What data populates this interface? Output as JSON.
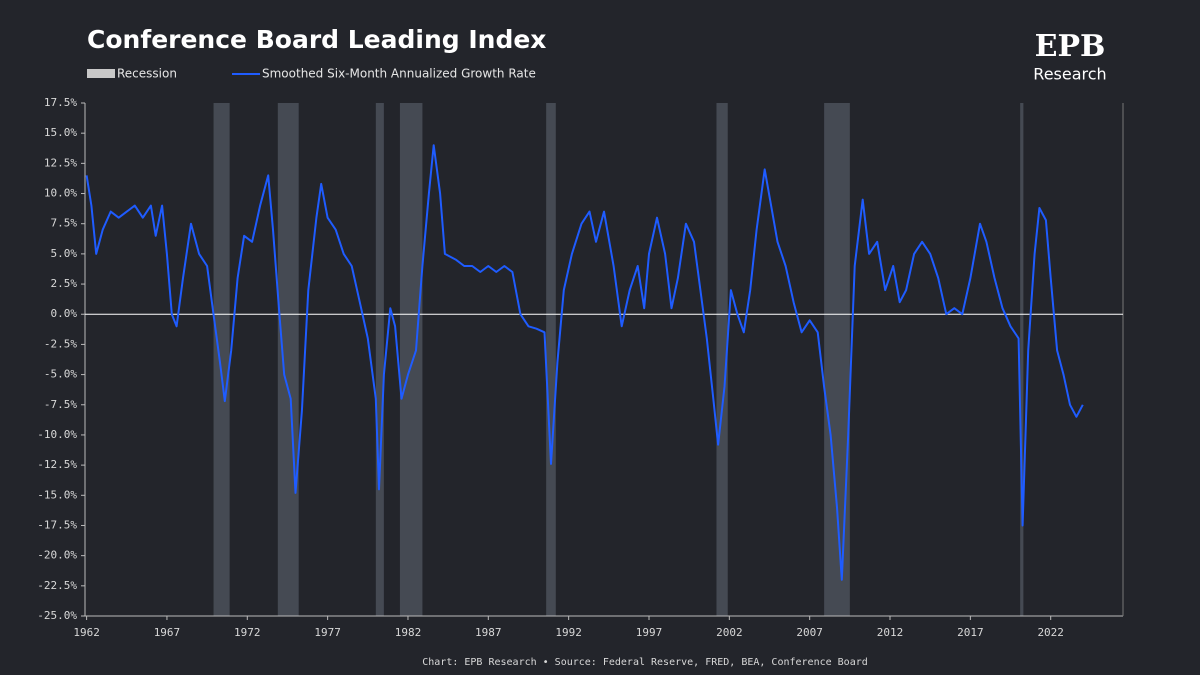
{
  "chart_data": {
    "type": "line",
    "title": "Conference Board Leading Index",
    "logo": {
      "mark": "EPB",
      "text": "Research"
    },
    "source": "Chart: EPB Research  •  Source: Federal Reserve, FRED, BEA, Conference Board",
    "recessions": {
      "name": "Recession",
      "color": "#454a53",
      "periods": [
        [
          1969.9,
          1970.9
        ],
        [
          1973.9,
          1975.2
        ],
        [
          1980.0,
          1980.5
        ],
        [
          1981.5,
          1982.9
        ],
        [
          1990.6,
          1991.2
        ],
        [
          2001.2,
          2001.9
        ],
        [
          2007.9,
          2009.5
        ],
        [
          2020.1,
          2020.3
        ]
      ]
    },
    "x": [
      1962,
      1962.3,
      1962.6,
      1963,
      1963.5,
      1964,
      1964.5,
      1965,
      1965.5,
      1966,
      1966.3,
      1966.7,
      1967,
      1967.3,
      1967.6,
      1968,
      1968.5,
      1969,
      1969.5,
      1969.9,
      1970.3,
      1970.6,
      1971,
      1971.4,
      1971.8,
      1972.3,
      1972.8,
      1973.3,
      1973.6,
      1974,
      1974.3,
      1974.7,
      1975,
      1975.4,
      1975.8,
      1976.3,
      1976.6,
      1977,
      1977.5,
      1978,
      1978.5,
      1979,
      1979.5,
      1980,
      1980.2,
      1980.5,
      1980.9,
      1981.2,
      1981.6,
      1982,
      1982.5,
      1982.9,
      1983.3,
      1983.6,
      1984,
      1984.3,
      1985,
      1985.5,
      1986,
      1986.5,
      1987,
      1987.5,
      1988,
      1988.5,
      1989,
      1989.5,
      1990,
      1990.5,
      1990.9,
      1991.3,
      1991.7,
      1992.2,
      1992.8,
      1993.3,
      1993.7,
      1994.2,
      1994.8,
      1995.3,
      1995.8,
      1996.3,
      1996.7,
      1997,
      1997.5,
      1998,
      1998.4,
      1998.8,
      1999.3,
      1999.8,
      2000.2,
      2000.6,
      2001,
      2001.3,
      2001.7,
      2002.1,
      2002.5,
      2002.9,
      2003.3,
      2003.7,
      2004.2,
      2004.6,
      2005,
      2005.5,
      2006,
      2006.5,
      2007,
      2007.5,
      2007.9,
      2008.3,
      2008.7,
      2009,
      2009.4,
      2009.8,
      2010.3,
      2010.7,
      2011.2,
      2011.7,
      2012.2,
      2012.6,
      2013,
      2013.5,
      2014,
      2014.5,
      2015,
      2015.5,
      2016,
      2016.5,
      2017,
      2017.6,
      2018,
      2018.5,
      2019,
      2019.5,
      2020,
      2020.25,
      2020.6,
      2021,
      2021.3,
      2021.7,
      2022,
      2022.4,
      2022.8,
      2023.2,
      2023.6,
      2024
    ],
    "series": [
      {
        "name": "Smoothed Six-Month Annualized Growth Rate",
        "color": "#1f5cff",
        "values": [
          11.5,
          9,
          5,
          7,
          8.5,
          8,
          8.5,
          9,
          8,
          9,
          6.5,
          9,
          5,
          0,
          -1,
          3,
          7.5,
          5,
          4,
          0,
          -4,
          -7.2,
          -3,
          3,
          6.5,
          6,
          9,
          11.5,
          7,
          0,
          -5,
          -7,
          -14.8,
          -8,
          2,
          8,
          10.8,
          8,
          7,
          5,
          4,
          1,
          -2,
          -7,
          -14.5,
          -5,
          0.5,
          -1,
          -7,
          -5,
          -3,
          4,
          10,
          14,
          10,
          5,
          4.5,
          4,
          4,
          3.5,
          4,
          3.5,
          4,
          3.5,
          0,
          -1,
          -1.2,
          -1.5,
          -12.4,
          -4,
          2,
          5,
          7.5,
          8.5,
          6,
          8.5,
          4,
          -1,
          2,
          4,
          0.5,
          5,
          8,
          5,
          0.5,
          3,
          7.5,
          6,
          2,
          -2,
          -7,
          -10.8,
          -6,
          2,
          0,
          -1.5,
          2,
          7,
          12,
          9,
          6,
          4,
          1,
          -1.5,
          -0.5,
          -1.5,
          -6,
          -10,
          -16,
          -22,
          -10,
          4,
          9.5,
          5,
          6,
          2,
          4,
          1,
          2,
          5,
          6,
          5,
          3,
          0,
          0.5,
          0,
          3,
          7.5,
          6,
          3,
          0.5,
          -1,
          -2,
          -17.5,
          -3,
          5,
          8.8,
          7.8,
          3,
          -3,
          -5,
          -7.5,
          -8.5,
          -7.5
        ]
      }
    ],
    "xlim": [
      1961.9,
      2026.5
    ],
    "ylim": [
      -25,
      17.5
    ],
    "xticks": [
      1962,
      1967,
      1972,
      1977,
      1982,
      1987,
      1992,
      1997,
      2002,
      2007,
      2012,
      2017,
      2022
    ],
    "yticks": [
      {
        "value": 17.5,
        "label": "17.5%"
      },
      {
        "value": 15,
        "label": "15.0%"
      },
      {
        "value": 12.5,
        "label": "12.5%"
      },
      {
        "value": 10,
        "label": "10.0%"
      },
      {
        "value": 7.5,
        "label": "7.5%"
      },
      {
        "value": 5,
        "label": "5.0%"
      },
      {
        "value": 2.5,
        "label": "2.5%"
      },
      {
        "value": 0,
        "label": "0.0%"
      },
      {
        "value": -2.5,
        "label": "-2.5%"
      },
      {
        "value": -5,
        "label": "-5.0%"
      },
      {
        "value": -7.5,
        "label": "-7.5%"
      },
      {
        "value": -10,
        "label": "-10.0%"
      },
      {
        "value": -12.5,
        "label": "-12.5%"
      },
      {
        "value": -15,
        "label": "-15.0%"
      },
      {
        "value": -17.5,
        "label": "-17.5%"
      },
      {
        "value": -20,
        "label": "-20.0%"
      },
      {
        "value": -22.5,
        "label": "-22.5%"
      },
      {
        "value": -25,
        "label": "-25.0%"
      }
    ]
  }
}
